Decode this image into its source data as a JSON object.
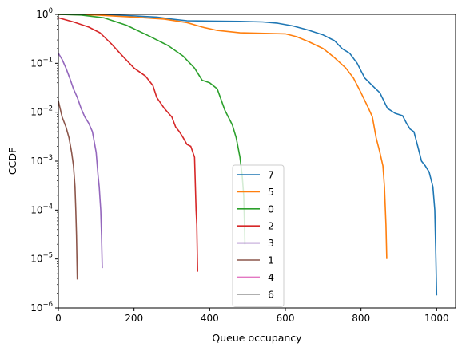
{
  "chart_data": {
    "type": "line",
    "title": "",
    "xlabel": "Queue occupancy",
    "ylabel": "CCDF",
    "xlim": [
      0,
      1050
    ],
    "ylim": [
      1e-06,
      1
    ],
    "yscale": "log",
    "grid": false,
    "legend_placement": "lower center",
    "x_ticks": [
      0,
      200,
      400,
      600,
      800,
      1000
    ],
    "x_tick_labels": [
      "0",
      "200",
      "400",
      "600",
      "800",
      "1000"
    ],
    "y_ticks": [
      1e-06,
      1e-05,
      0.0001,
      0.001,
      0.01,
      0.1,
      1
    ],
    "y_tick_labels": [
      {
        "base": "10",
        "exp": "−6"
      },
      {
        "base": "10",
        "exp": "−5"
      },
      {
        "base": "10",
        "exp": "−4"
      },
      {
        "base": "10",
        "exp": "−3"
      },
      {
        "base": "10",
        "exp": "−2"
      },
      {
        "base": "10",
        "exp": "−1"
      },
      {
        "base": "10",
        "exp": "0"
      }
    ],
    "series": [
      {
        "name": "7",
        "color": "#1f77b4",
        "points": [
          [
            0,
            1.0
          ],
          [
            100,
            0.99
          ],
          [
            200,
            0.93
          ],
          [
            260,
            0.88
          ],
          [
            300,
            0.8
          ],
          [
            340,
            0.74
          ],
          [
            400,
            0.73
          ],
          [
            480,
            0.72
          ],
          [
            540,
            0.7
          ],
          [
            580,
            0.66
          ],
          [
            620,
            0.58
          ],
          [
            660,
            0.48
          ],
          [
            700,
            0.38
          ],
          [
            730,
            0.29
          ],
          [
            750,
            0.2
          ],
          [
            770,
            0.16
          ],
          [
            790,
            0.1
          ],
          [
            800,
            0.07
          ],
          [
            810,
            0.05
          ],
          [
            830,
            0.035
          ],
          [
            850,
            0.025
          ],
          [
            870,
            0.012
          ],
          [
            890,
            0.0095
          ],
          [
            910,
            0.0085
          ],
          [
            920,
            0.006
          ],
          [
            930,
            0.0045
          ],
          [
            940,
            0.004
          ],
          [
            950,
            0.002
          ],
          [
            960,
            0.001
          ],
          [
            970,
            0.0008
          ],
          [
            980,
            0.0006
          ],
          [
            990,
            0.0003
          ],
          [
            995,
            0.0001
          ],
          [
            998,
            1e-05
          ],
          [
            1000,
            1.8e-06
          ]
        ]
      },
      {
        "name": "5",
        "color": "#ff7f0e",
        "points": [
          [
            0,
            1.0
          ],
          [
            100,
            0.97
          ],
          [
            200,
            0.88
          ],
          [
            280,
            0.8
          ],
          [
            340,
            0.68
          ],
          [
            380,
            0.55
          ],
          [
            420,
            0.47
          ],
          [
            480,
            0.42
          ],
          [
            600,
            0.4
          ],
          [
            630,
            0.35
          ],
          [
            660,
            0.28
          ],
          [
            700,
            0.2
          ],
          [
            730,
            0.13
          ],
          [
            760,
            0.08
          ],
          [
            780,
            0.05
          ],
          [
            800,
            0.025
          ],
          [
            820,
            0.012
          ],
          [
            830,
            0.008
          ],
          [
            840,
            0.003
          ],
          [
            850,
            0.0015
          ],
          [
            858,
            0.0008
          ],
          [
            862,
            0.0003
          ],
          [
            866,
            5e-05
          ],
          [
            868,
            1e-05
          ]
        ]
      },
      {
        "name": "0",
        "color": "#2ca02c",
        "points": [
          [
            0,
            1.0
          ],
          [
            60,
            0.97
          ],
          [
            120,
            0.85
          ],
          [
            180,
            0.6
          ],
          [
            240,
            0.36
          ],
          [
            290,
            0.23
          ],
          [
            330,
            0.14
          ],
          [
            360,
            0.08
          ],
          [
            380,
            0.045
          ],
          [
            400,
            0.04
          ],
          [
            420,
            0.03
          ],
          [
            440,
            0.011
          ],
          [
            460,
            0.0055
          ],
          [
            470,
            0.003
          ],
          [
            480,
            0.0012
          ],
          [
            486,
            0.0005
          ],
          [
            490,
            0.0002
          ],
          [
            492,
            5e-05
          ],
          [
            493,
            2e-05
          ]
        ]
      },
      {
        "name": "2",
        "color": "#d62728",
        "points": [
          [
            0,
            0.85
          ],
          [
            40,
            0.7
          ],
          [
            80,
            0.55
          ],
          [
            110,
            0.42
          ],
          [
            140,
            0.25
          ],
          [
            170,
            0.14
          ],
          [
            200,
            0.08
          ],
          [
            230,
            0.055
          ],
          [
            250,
            0.035
          ],
          [
            260,
            0.02
          ],
          [
            280,
            0.012
          ],
          [
            300,
            0.008
          ],
          [
            310,
            0.005
          ],
          [
            320,
            0.004
          ],
          [
            330,
            0.003
          ],
          [
            340,
            0.0022
          ],
          [
            350,
            0.002
          ],
          [
            360,
            0.0012
          ],
          [
            364,
            0.0001
          ],
          [
            366,
            5e-05
          ],
          [
            368,
            5.5e-06
          ]
        ]
      },
      {
        "name": "3",
        "color": "#9467bd",
        "points": [
          [
            0,
            0.16
          ],
          [
            10,
            0.12
          ],
          [
            20,
            0.08
          ],
          [
            30,
            0.05
          ],
          [
            40,
            0.03
          ],
          [
            50,
            0.02
          ],
          [
            60,
            0.012
          ],
          [
            70,
            0.008
          ],
          [
            80,
            0.006
          ],
          [
            90,
            0.004
          ],
          [
            100,
            0.0015
          ],
          [
            105,
            0.0005
          ],
          [
            108,
            0.0003
          ],
          [
            112,
            0.0001
          ],
          [
            114,
            3e-05
          ],
          [
            116,
            6.5e-06
          ]
        ]
      },
      {
        "name": "1",
        "color": "#8c564b",
        "points": [
          [
            0,
            0.017
          ],
          [
            10,
            0.008
          ],
          [
            20,
            0.005
          ],
          [
            28,
            0.003
          ],
          [
            35,
            0.0015
          ],
          [
            40,
            0.0008
          ],
          [
            44,
            0.0003
          ],
          [
            46,
            0.0001
          ],
          [
            48,
            3e-05
          ],
          [
            50,
            3.8e-06
          ]
        ]
      },
      {
        "name": "4",
        "color": "#e377c2",
        "points": []
      },
      {
        "name": "6",
        "color": "#7f7f7f",
        "points": []
      }
    ]
  }
}
